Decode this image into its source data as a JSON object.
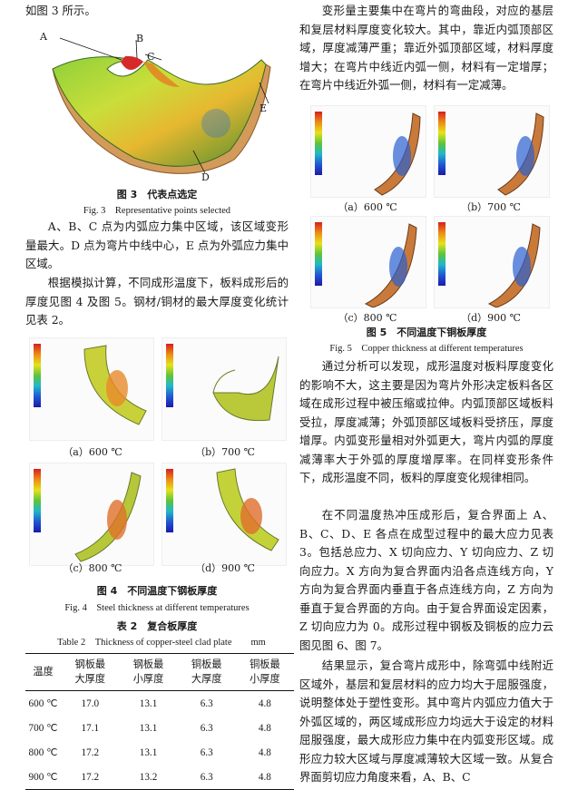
{
  "left": {
    "intro": "如图 3 所示。",
    "fig3": {
      "labels": [
        "A",
        "B",
        "C",
        "D",
        "E"
      ],
      "caption_cn": "图 3　代表点选定",
      "caption_en": "Fig. 3　Representative points selected"
    },
    "para1": "A、B、C 点为内弧应力集中区域，该区域变形量最大。D 点为弯片中线中心，E 点为外弧应力集中区域。",
    "para2": "根据模拟计算，不同成形温度下，板料成形后的厚度见图 4 及图 5。钢材/铜材的最大厚度变化统计见表 2。",
    "fig4": {
      "sub": [
        "（a）600 ℃",
        "（b）700 ℃",
        "（c）800 ℃",
        "（d）900 ℃"
      ],
      "caption_cn": "图 4　不同温度下钢板厚度",
      "caption_en": "Fig. 4　Steel thickness at different temperatures"
    },
    "table2": {
      "title_cn": "表 2　复合板厚度",
      "title_en": "Table 2　Thickness of copper-steel clad plate　　mm",
      "headers": [
        "温度",
        "钢板最大厚度",
        "钢板最小厚度",
        "铜板最大厚度",
        "铜板最小厚度"
      ],
      "rows": [
        [
          "600 ℃",
          "17.0",
          "13.1",
          "6.3",
          "4.8"
        ],
        [
          "700 ℃",
          "17.1",
          "13.1",
          "6.3",
          "4.8"
        ],
        [
          "800 ℃",
          "17.2",
          "13.1",
          "6.3",
          "4.8"
        ],
        [
          "900 ℃",
          "17.2",
          "13.2",
          "6.3",
          "4.8"
        ]
      ]
    }
  },
  "right": {
    "para1": "变形量主要集中在弯片的弯曲段，对应的基层和复层材料厚度变化较大。其中，靠近内弧顶部区域，厚度减薄严重；靠近外弧顶部区域，材料厚度增大；在弯片中线近内弧一侧，材料有一定增厚；在弯片中线近外弧一侧，材料有一定减薄。",
    "fig5": {
      "sub": [
        "（a）600 ℃",
        "（b）700 ℃",
        "（c）800 ℃",
        "（d）900 ℃"
      ],
      "caption_cn": "图 5　不同温度下铜板厚度",
      "caption_en": "Fig. 5　Copper thickness at different temperatures"
    },
    "para2": "通过分析可以发现，成形温度对板料厚度变化的影响不大，这主要是因为弯片外形决定板料各区域在成形过程中被压缩或拉伸。内弧顶部区域板料受拉，厚度减薄；外弧顶部区域板料受挤压，厚度增厚。内弧变形量相对外弧更大，弯片内弧的厚度减薄率大于外弧的厚度增厚率。在同样变形条件下，成形温度不同，板料的厚度变化规律相同。",
    "para3": "在不同温度热冲压成形后，复合界面上 A、B、C、D、E 各点在成型过程中的最大应力见表 3。包括总应力、X 切向应力、Y 切向应力、Z 切向应力。X 方向为复合界面内沿各点连线方向，Y 方向为复合界面内垂直于各点连线方向，Z 方向为垂直于复合界面的方向。由于复合界面设定因素，Z 切向应力为 0。成形过程中钢板及铜板的应力云图见图 6、图 7。",
    "para4": "结果显示，复合弯片成形中，除弯弧中线附近区域外，基层和复层材料的应力均大于屈服强度，说明整体处于塑性变形。其中弯片内弧应力值大于外弧区域的，两区域成形应力均远大于设定的材料屈服强度，最大成形应力集中在内弧变形区域。成形应力较大区域与厚度减薄较大区域一致。从复合界面剪切应力角度来看，A、B、C"
  }
}
